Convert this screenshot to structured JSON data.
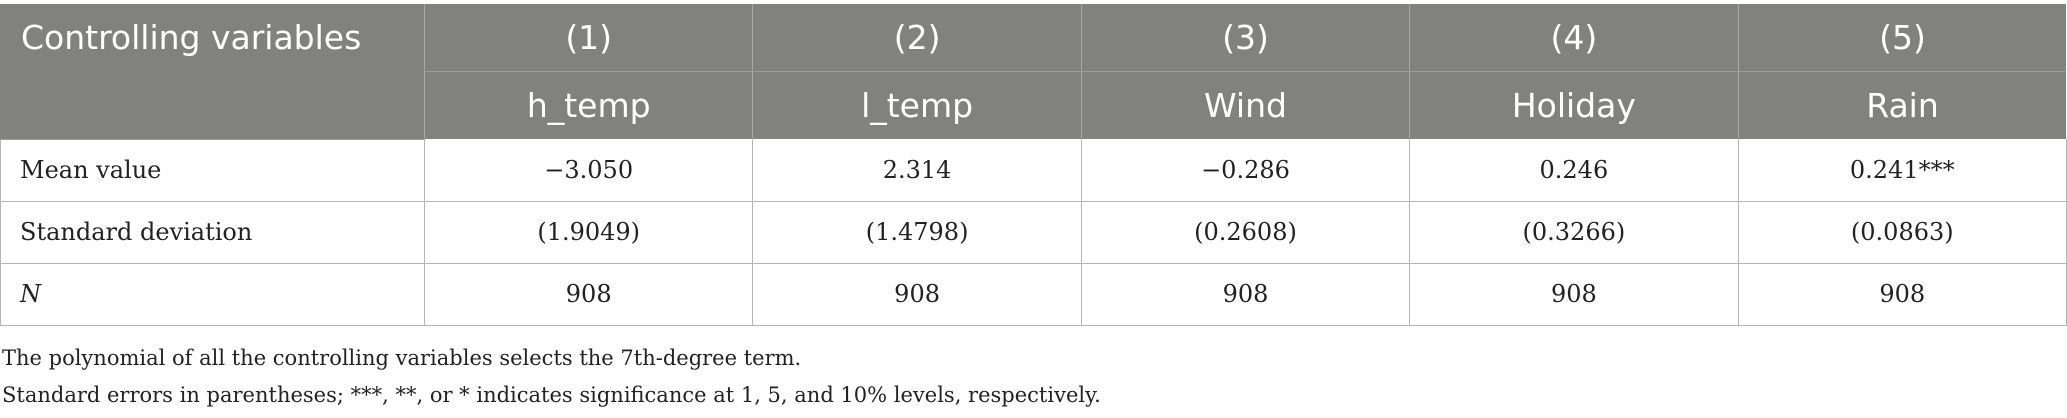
{
  "table": {
    "corner_label": "Controlling variables",
    "column_numbers": [
      "(1)",
      "(2)",
      "(3)",
      "(4)",
      "(5)"
    ],
    "column_names": [
      "h_temp",
      "l_temp",
      "Wind",
      "Holiday",
      "Rain"
    ],
    "rows": [
      {
        "label": "Mean value",
        "cells": [
          "−3.050",
          "2.314",
          "−0.286",
          "0.246",
          "0.241***"
        ]
      },
      {
        "label": "Standard deviation",
        "cells": [
          "(1.9049)",
          "(1.4798)",
          "(0.2608)",
          "(0.3266)",
          "(0.0863)"
        ]
      },
      {
        "label": "N",
        "cells": [
          "908",
          "908",
          "908",
          "908",
          "908"
        ]
      }
    ]
  },
  "notes": [
    "The polynomial of all the controlling variables selects the 7th-degree term.",
    "Standard errors in parentheses; ***, **, or * indicates significance at 1, 5, and 10% levels, respectively."
  ]
}
